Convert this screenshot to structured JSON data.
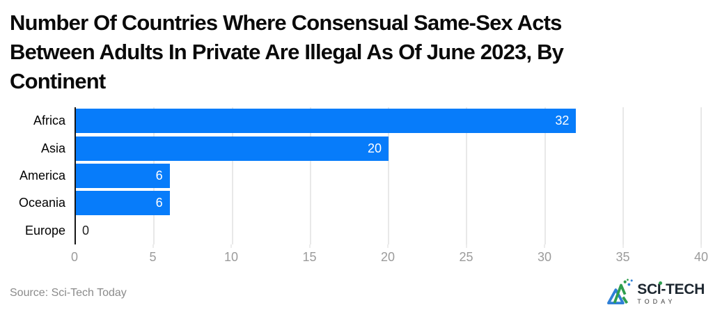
{
  "title_lines": [
    "Number Of Countries Where Consensual Same-Sex Acts",
    "Between Adults In Private Are Illegal As Of June 2023, By",
    "Continent"
  ],
  "chart_data": {
    "type": "bar",
    "orientation": "horizontal",
    "title": "Number Of Countries Where Consensual Same-Sex Acts Between Adults In Private Are Illegal As Of June 2023, By Continent",
    "categories": [
      "Africa",
      "Asia",
      "America",
      "Oceania",
      "Europe"
    ],
    "values": [
      32,
      20,
      6,
      6,
      0
    ],
    "xlim": [
      0,
      40
    ],
    "xticks": [
      0,
      5,
      10,
      15,
      20,
      25,
      30,
      35,
      40
    ],
    "grid": true,
    "legend": false,
    "xlabel": "",
    "ylabel": ""
  },
  "footer": {
    "source": "Source: Sci-Tech Today"
  },
  "logo": {
    "name": "SCI-TECH",
    "tagline": "TODAY"
  },
  "colors": {
    "bar": "#077cfa",
    "grid": "#e8e8e8",
    "axis": "#161616",
    "tick_text": "#9b9b9b",
    "category_text": "#000000",
    "value_text_inside": "#ffffff",
    "value_text_outside": "#222222",
    "source_text": "#8b8b8b",
    "logo_text": "#1d2730",
    "logo_green": "#2e9e4f",
    "logo_blue": "#2f7fd6"
  }
}
